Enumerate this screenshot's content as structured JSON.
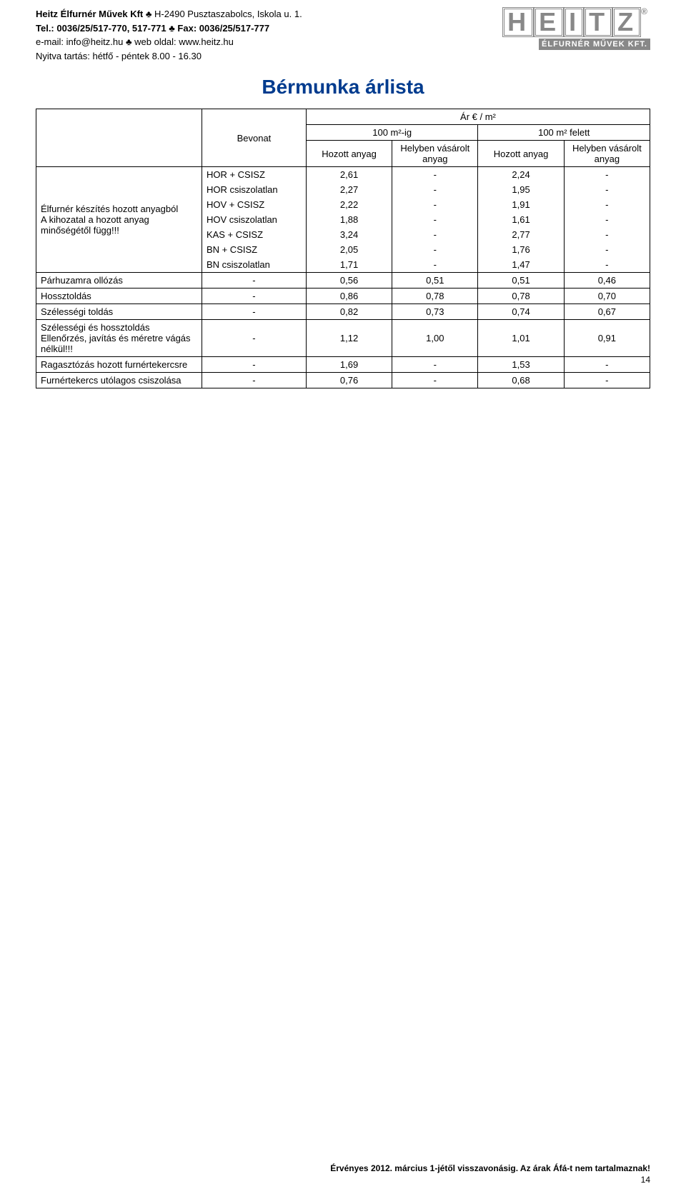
{
  "header": {
    "company": "Heitz Élfurnér Művek Kft",
    "addr": "H-2490 Pusztaszabolcs, Iskola u. 1.",
    "tel_label": "Tel.:",
    "tel": "0036/25/517-770, 517-771",
    "fax_label": "Fax:",
    "fax": "0036/25/517-777",
    "email_label": "e-mail:",
    "email": "info@heitz.hu",
    "web_label": "web oldal:",
    "web": "www.heitz.hu",
    "opening": "Nyitva tartás: hétfő - péntek 8.00 - 16.30",
    "logo_text": "HEITZ",
    "logo_sub": "ÉLFURNÉR MŰVEK KFT."
  },
  "title": "Bérmunka árlista",
  "table": {
    "top_header": "Ár € / m²",
    "bevonat": "Bevonat",
    "sub_a": "100 m²-ig",
    "sub_b": "100 m² felett",
    "col_hozott": "Hozott anyag",
    "col_helyben": "Helyben vásárolt anyag",
    "block1_label": "Élfurnér készítés hozott anyagból\nA kihozatal a hozott anyag minőségétől függ!!!",
    "block1_rows": [
      {
        "b": "HOR + CSISZ",
        "v": [
          "2,61",
          "-",
          "2,24",
          "-"
        ]
      },
      {
        "b": "HOR csiszolatlan",
        "v": [
          "2,27",
          "-",
          "1,95",
          "-"
        ]
      },
      {
        "b": "HOV + CSISZ",
        "v": [
          "2,22",
          "-",
          "1,91",
          "-"
        ]
      },
      {
        "b": "HOV csiszolatlan",
        "v": [
          "1,88",
          "-",
          "1,61",
          "-"
        ]
      },
      {
        "b": "KAS + CSISZ",
        "v": [
          "3,24",
          "-",
          "2,77",
          "-"
        ]
      },
      {
        "b": "BN + CSISZ",
        "v": [
          "2,05",
          "-",
          "1,76",
          "-"
        ]
      },
      {
        "b": "BN csiszolatlan",
        "v": [
          "1,71",
          "-",
          "1,47",
          "-"
        ]
      }
    ],
    "rows2": [
      {
        "l": "Párhuzamra ollózás",
        "b": "-",
        "v": [
          "0,56",
          "0,51",
          "0,51",
          "0,46"
        ]
      },
      {
        "l": "Hossztoldás",
        "b": "-",
        "v": [
          "0,86",
          "0,78",
          "0,78",
          "0,70"
        ]
      },
      {
        "l": "Szélességi toldás",
        "b": "-",
        "v": [
          "0,82",
          "0,73",
          "0,74",
          "0,67"
        ]
      },
      {
        "l": "Szélességi és hossztoldás\nEllenőrzés, javítás és méretre vágás nélkül!!!",
        "b": "-",
        "v": [
          "1,12",
          "1,00",
          "1,01",
          "0,91"
        ]
      }
    ],
    "rows3": [
      {
        "l": "Ragasztózás hozott furnértekercsre",
        "b": "-",
        "v": [
          "1,69",
          "-",
          "1,53",
          "-"
        ]
      },
      {
        "l": "Furnértekercs utólagos csiszolása",
        "b": "-",
        "v": [
          "0,76",
          "-",
          "0,68",
          "-"
        ]
      }
    ]
  },
  "footer": {
    "line": "Érvényes 2012. március 1-jétől visszavonásig. Az árak Áfá-t nem tartalmaznak!",
    "page": "14"
  },
  "style": {
    "title_color": "#003b8e",
    "border_color": "#000000",
    "font_size_body": 13,
    "font_size_title": 28
  }
}
